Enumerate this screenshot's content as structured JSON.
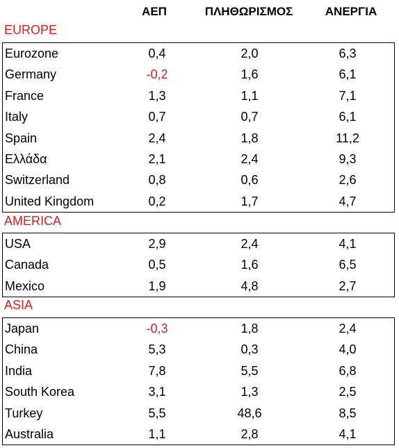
{
  "columns": [
    "ΑΕΠ",
    "ΠΛΗΘΩΡΙΣΜΟΣ",
    "ΑΝΕΡΓΙΑ"
  ],
  "regions": [
    {
      "name": "EUROPE",
      "rows": [
        {
          "country": "Eurozone",
          "gdp": "0,4",
          "inflation": "2,0",
          "unemployment": "6,3"
        },
        {
          "country": "Germany",
          "gdp": "-0,2",
          "inflation": "1,6",
          "unemployment": "6,1"
        },
        {
          "country": "France",
          "gdp": "1,3",
          "inflation": "1,1",
          "unemployment": "7,1"
        },
        {
          "country": "Italy",
          "gdp": "0,7",
          "inflation": "0,7",
          "unemployment": "6,1"
        },
        {
          "country": "Spain",
          "gdp": "2,4",
          "inflation": "1,8",
          "unemployment": "11,2"
        },
        {
          "country": "Ελλάδα",
          "gdp": "2,1",
          "inflation": "2,4",
          "unemployment": "9,3"
        },
        {
          "country": "Switzerland",
          "gdp": "0,8",
          "inflation": "0,6",
          "unemployment": "2,6"
        },
        {
          "country": "United Kingdom",
          "gdp": "0,2",
          "inflation": "1,7",
          "unemployment": "4,7"
        }
      ]
    },
    {
      "name": "AMERICA",
      "rows": [
        {
          "country": "USA",
          "gdp": "2,9",
          "inflation": "2,4",
          "unemployment": "4,1"
        },
        {
          "country": "Canada",
          "gdp": "0,5",
          "inflation": "1,6",
          "unemployment": "6,5"
        },
        {
          "country": "Mexico",
          "gdp": "1,9",
          "inflation": "4,8",
          "unemployment": "2,7"
        }
      ]
    },
    {
      "name": "ASIA",
      "rows": [
        {
          "country": "Japan",
          "gdp": "-0,3",
          "inflation": "1,8",
          "unemployment": "2,4"
        },
        {
          "country": "China",
          "gdp": "5,3",
          "inflation": "0,3",
          "unemployment": "4,0"
        },
        {
          "country": "India",
          "gdp": "7,8",
          "inflation": "5,5",
          "unemployment": "6,8"
        },
        {
          "country": "South Korea",
          "gdp": "3,1",
          "inflation": "1,3",
          "unemployment": "2,5"
        },
        {
          "country": "Turkey",
          "gdp": "5,5",
          "inflation": "48,6",
          "unemployment": "8,5"
        },
        {
          "country": "Australia",
          "gdp": "1,1",
          "inflation": "2,8",
          "unemployment": "4,1"
        }
      ]
    }
  ],
  "colors": {
    "negative": "#e21c1c",
    "region_label": "#e21c1c"
  }
}
